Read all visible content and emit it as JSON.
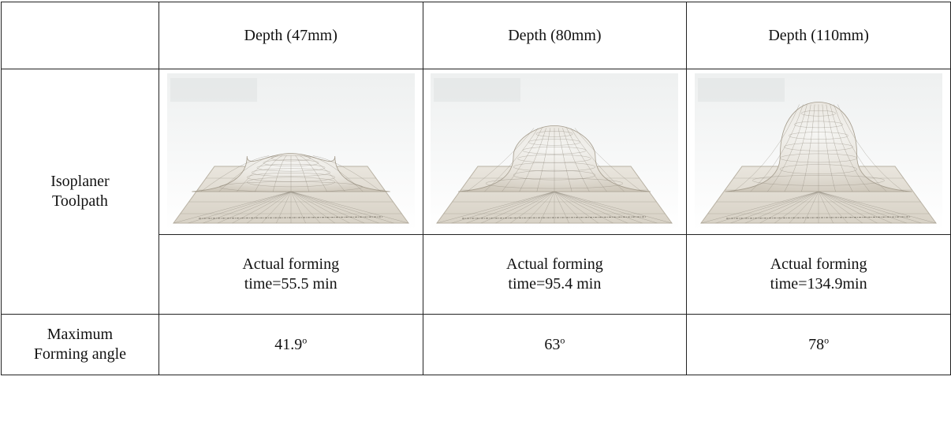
{
  "table": {
    "headers": [
      "Depth (47mm)",
      "Depth (80mm)",
      "Depth (110mm)"
    ],
    "row_toolpath": {
      "label_line1": "Isoplaner",
      "label_line2": "Toolpath",
      "images": [
        "formed-dome-47mm",
        "formed-dome-80mm",
        "formed-dome-110mm"
      ],
      "times": [
        {
          "line1": "Actual forming",
          "line2": "time=55.5 min"
        },
        {
          "line1": "Actual forming",
          "line2": "time=95.4 min"
        },
        {
          "line1": "Actual forming",
          "line2": "time=134.9min"
        }
      ]
    },
    "row_angle": {
      "label_line1": "Maximum",
      "label_line2": "Forming angle",
      "values": [
        "41.9",
        "63",
        "78"
      ],
      "unit_superscript": "o"
    }
  }
}
